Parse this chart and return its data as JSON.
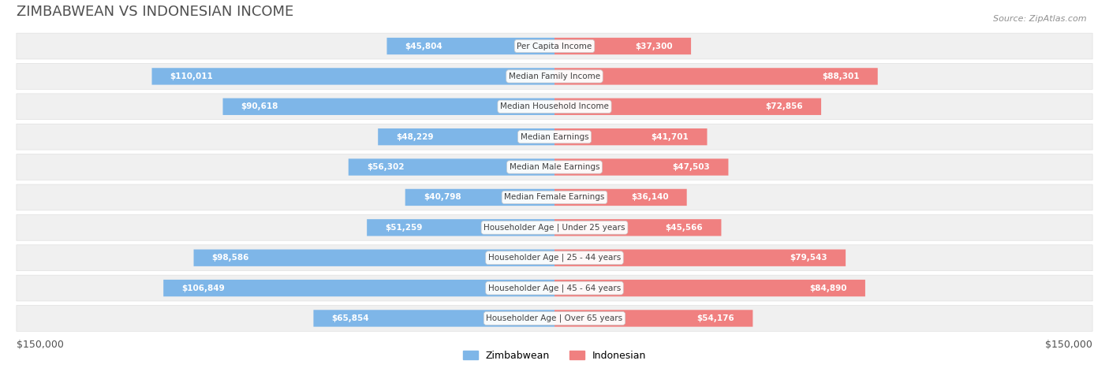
{
  "title": "ZIMBABWEAN VS INDONESIAN INCOME",
  "source": "Source: ZipAtlas.com",
  "categories": [
    "Per Capita Income",
    "Median Family Income",
    "Median Household Income",
    "Median Earnings",
    "Median Male Earnings",
    "Median Female Earnings",
    "Householder Age | Under 25 years",
    "Householder Age | 25 - 44 years",
    "Householder Age | 45 - 64 years",
    "Householder Age | Over 65 years"
  ],
  "zimbabwean_values": [
    45804,
    110011,
    90618,
    48229,
    56302,
    40798,
    51259,
    98586,
    106849,
    65854
  ],
  "indonesian_values": [
    37300,
    88301,
    72856,
    41701,
    47503,
    36140,
    45566,
    79543,
    84890,
    54176
  ],
  "max_value": 150000,
  "zimbabwean_color": "#7EB6E8",
  "indonesian_color": "#F08080",
  "zimbabwean_color_dark": "#5B9BD5",
  "indonesian_color_dark": "#E87070",
  "row_bg_color": "#F0F0F0",
  "row_border_color": "#E0E0E0",
  "label_bg_color": "#FFFFFF",
  "title_color": "#505050",
  "value_color_inside": "#FFFFFF",
  "value_color_outside": "#808080",
  "bg_color": "#FFFFFF",
  "xlabel_left": "$150,000",
  "xlabel_right": "$150,000",
  "legend_zimbabwean": "Zimbabwean",
  "legend_indonesian": "Indonesian"
}
